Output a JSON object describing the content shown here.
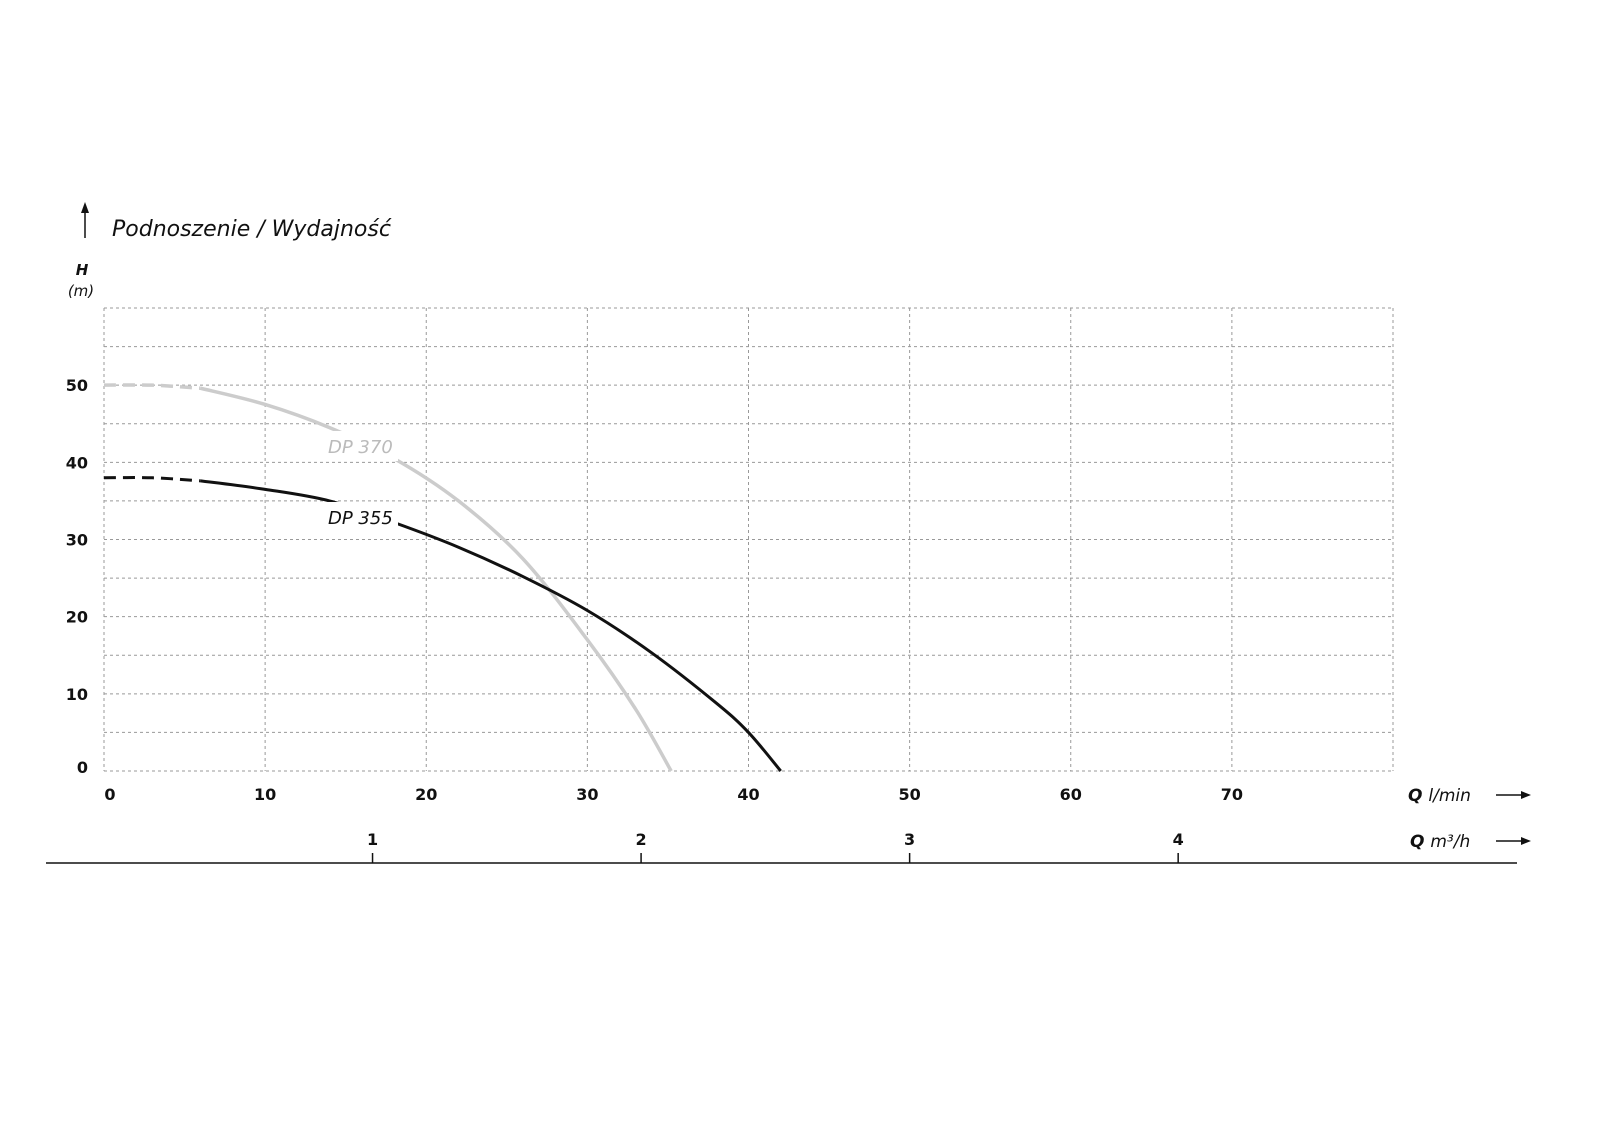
{
  "chart_data": {
    "type": "line",
    "title": "Podnoszenie / Wydajność",
    "ylabel": "H",
    "yunit": "(m)",
    "xlabel": "Q",
    "xunit": "l/min",
    "x2label": "Q",
    "x2unit": "m³/h",
    "xlim": [
      0,
      80
    ],
    "ylim": [
      0,
      60
    ],
    "xticks": [
      0,
      10,
      20,
      30,
      40,
      50,
      60,
      70
    ],
    "yticks": [
      0,
      10,
      20,
      30,
      40,
      50
    ],
    "x2ticks": [
      1,
      2,
      3,
      4
    ],
    "grid": true,
    "series": [
      {
        "name": "DP 370",
        "color": "#cccccc",
        "dashed_until": 6,
        "points": [
          [
            0,
            50
          ],
          [
            3,
            50
          ],
          [
            6,
            49.6
          ],
          [
            10,
            47.5
          ],
          [
            14,
            44.5
          ],
          [
            18,
            40.5
          ],
          [
            22,
            35
          ],
          [
            26,
            27.5
          ],
          [
            30,
            17
          ],
          [
            33,
            8
          ],
          [
            35.2,
            0
          ]
        ]
      },
      {
        "name": "DP 355",
        "color": "#111111",
        "dashed_until": 6,
        "points": [
          [
            0,
            38
          ],
          [
            3,
            38
          ],
          [
            6,
            37.6
          ],
          [
            10,
            36.5
          ],
          [
            14,
            35
          ],
          [
            18,
            32.2
          ],
          [
            22,
            29
          ],
          [
            26,
            25.2
          ],
          [
            30,
            20.8
          ],
          [
            34,
            15.3
          ],
          [
            38,
            8.8
          ],
          [
            40,
            5
          ],
          [
            42,
            0
          ]
        ]
      }
    ]
  }
}
